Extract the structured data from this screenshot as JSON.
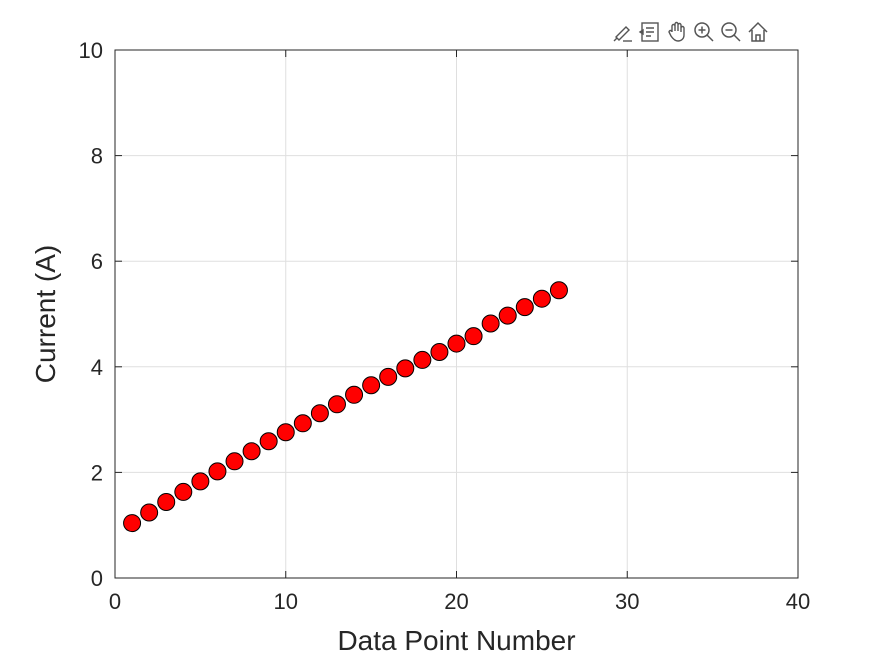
{
  "toolbar": {
    "icons": [
      "brush-icon",
      "data-tips-icon",
      "pan-icon",
      "zoom-in-icon",
      "zoom-out-icon",
      "home-icon"
    ]
  },
  "chart_data": {
    "type": "scatter",
    "title": "",
    "xlabel": "Data Point Number",
    "ylabel": "Current (A)",
    "xlim": [
      0,
      40
    ],
    "ylim": [
      0,
      10
    ],
    "xticks": [
      0,
      10,
      20,
      30,
      40
    ],
    "yticks": [
      0,
      2,
      4,
      6,
      8,
      10
    ],
    "grid": true,
    "marker_color": "#ff0000",
    "marker_edge_color": "#000000",
    "x": [
      1,
      2,
      3,
      4,
      5,
      6,
      7,
      8,
      9,
      10,
      11,
      12,
      13,
      14,
      15,
      16,
      17,
      18,
      19,
      20,
      21,
      22,
      23,
      24,
      25,
      26
    ],
    "y": [
      1.04,
      1.24,
      1.44,
      1.63,
      1.83,
      2.02,
      2.21,
      2.4,
      2.59,
      2.76,
      2.93,
      3.12,
      3.29,
      3.47,
      3.65,
      3.81,
      3.97,
      4.13,
      4.28,
      4.44,
      4.58,
      4.82,
      4.97,
      5.13,
      5.29,
      5.45
    ]
  }
}
